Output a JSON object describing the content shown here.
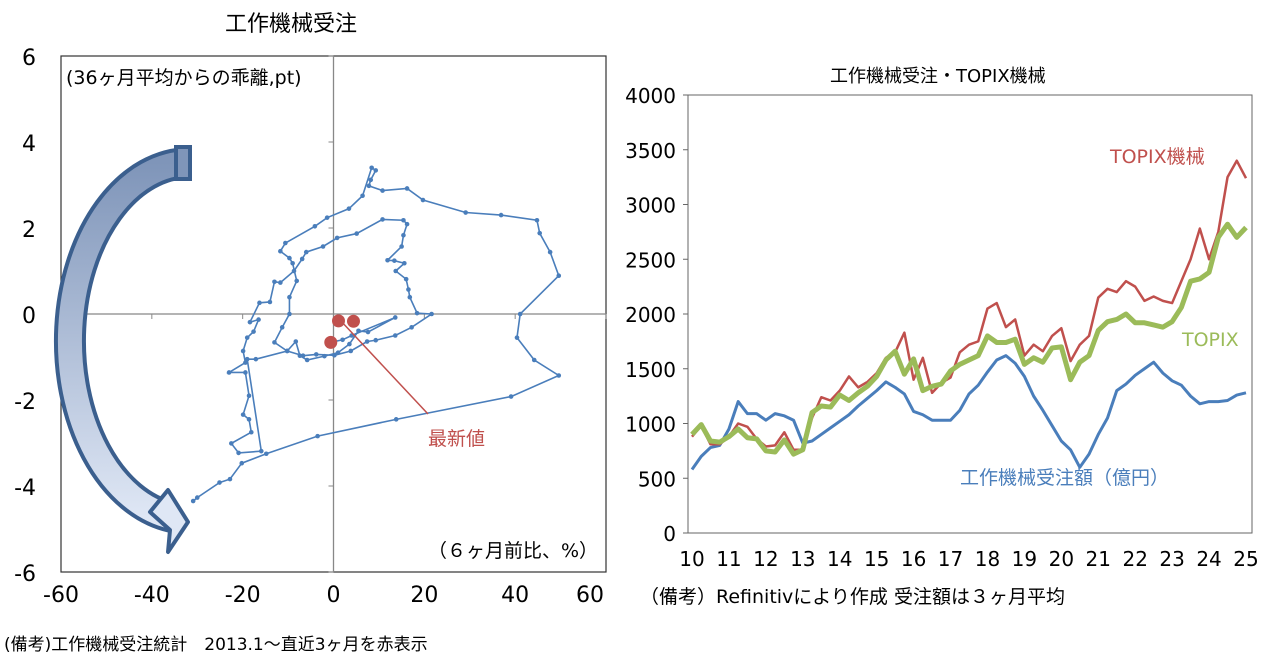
{
  "chart_data": [
    {
      "type": "scatter",
      "title": "工作機械受注",
      "xlabel": "（６ヶ月前比、%）",
      "ylabel": "(36ヶ月平均からの乖離,pt)",
      "xlim": [
        -60,
        60
      ],
      "ylim": [
        -6,
        6
      ],
      "xticks": [
        "-60",
        "-40",
        "-20",
        "0",
        "20",
        "40",
        "60"
      ],
      "yticks": [
        "6",
        "4",
        "2",
        "0",
        "-2",
        "-4",
        "-6"
      ],
      "grid": false,
      "annotation": "最新値",
      "series": [
        {
          "color": "#4a7ebb",
          "connected": true,
          "points": [
            [
              -30.9,
              -4.35
            ],
            [
              -30,
              -4.27
            ],
            [
              -25.1,
              -3.92
            ],
            [
              -22.8,
              -3.84
            ],
            [
              -20.2,
              -3.47
            ],
            [
              -14.8,
              -3.25
            ],
            [
              -3.5,
              -2.84
            ],
            [
              13.8,
              -2.45
            ],
            [
              39.1,
              -1.92
            ],
            [
              49.6,
              -1.43
            ],
            [
              44.2,
              -1.07
            ],
            [
              40.4,
              -0.55
            ],
            [
              41.1,
              0
            ],
            [
              49.6,
              0.89
            ],
            [
              47.7,
              1.44
            ],
            [
              45.4,
              1.88
            ],
            [
              44.8,
              2.18
            ],
            [
              36.9,
              2.3
            ],
            [
              29.1,
              2.36
            ],
            [
              19.7,
              2.65
            ],
            [
              16.2,
              2.92
            ],
            [
              10.8,
              2.87
            ],
            [
              7.8,
              2.98
            ],
            [
              8.2,
              3.12
            ],
            [
              9.3,
              3.34
            ],
            [
              8.4,
              3.4
            ],
            [
              6.4,
              2.75
            ],
            [
              3.4,
              2.45
            ],
            [
              -1.4,
              2.24
            ],
            [
              -4.1,
              2.04
            ],
            [
              -10.6,
              1.65
            ],
            [
              -11.7,
              1.46
            ],
            [
              -9.7,
              1.3
            ],
            [
              -9,
              1.18
            ],
            [
              -8.1,
              0.77
            ],
            [
              -9.7,
              0.39
            ],
            [
              -9.7,
              0
            ],
            [
              -11.3,
              -0.31
            ],
            [
              -13,
              -0.66
            ],
            [
              -10.2,
              -0.86
            ],
            [
              -6.7,
              -0.97
            ],
            [
              -3.8,
              -0.94
            ],
            [
              0.2,
              -0.96
            ],
            [
              3.8,
              -0.86
            ],
            [
              7.4,
              -0.64
            ],
            [
              9.3,
              -0.61
            ],
            [
              13.6,
              -0.5
            ],
            [
              17.2,
              -0.31
            ],
            [
              21.6,
              0
            ],
            [
              18.4,
              0.02
            ],
            [
              16.8,
              0.39
            ],
            [
              16.5,
              0.57
            ],
            [
              16,
              0.81
            ],
            [
              13.7,
              1
            ],
            [
              15.6,
              1.18
            ],
            [
              13.4,
              1.24
            ],
            [
              11.9,
              1.25
            ],
            [
              15,
              1.57
            ],
            [
              15.4,
              1.83
            ],
            [
              16.2,
              2.09
            ],
            [
              15.4,
              2.18
            ],
            [
              10.8,
              2.2
            ],
            [
              5.1,
              1.87
            ],
            [
              0.8,
              1.77
            ],
            [
              -2.3,
              1.57
            ],
            [
              -6,
              1.44
            ],
            [
              -6.9,
              1.28
            ],
            [
              -8.7,
              1
            ],
            [
              -11.7,
              0.73
            ],
            [
              -13,
              0.75
            ],
            [
              -14,
              0.28
            ],
            [
              -16.3,
              0.26
            ],
            [
              -18.4,
              -0.19
            ],
            [
              -16.5,
              -0.13
            ],
            [
              -17.6,
              -0.41
            ],
            [
              -19,
              -0.55
            ],
            [
              -19.9,
              -0.86
            ],
            [
              -19.4,
              -1.13
            ],
            [
              -23,
              -1.36
            ],
            [
              -19.4,
              -1.36
            ],
            [
              -18.6,
              -1.9
            ],
            [
              -19.9,
              -2.34
            ],
            [
              -18.6,
              -2.45
            ],
            [
              -18.1,
              -2.75
            ],
            [
              -22.5,
              -3.01
            ],
            [
              -20.9,
              -3.23
            ],
            [
              -15.9,
              -3.19
            ],
            [
              -19,
              -1.05
            ],
            [
              -17.1,
              -1.05
            ],
            [
              -10.2,
              -0.86
            ],
            [
              -8.3,
              -0.64
            ],
            [
              -7.4,
              -0.97
            ],
            [
              -5.8,
              -1.07
            ],
            [
              -2,
              -0.98
            ],
            [
              1,
              -0.9
            ],
            [
              3.5,
              -0.7
            ],
            [
              5.5,
              -0.39
            ],
            [
              7.6,
              -0.42
            ],
            [
              13.6,
              -0.08
            ],
            [
              4,
              -0.5
            ],
            [
              2,
              -0.6
            ],
            [
              -0.6,
              -0.66
            ]
          ]
        },
        {
          "color": "#c0504d",
          "connected": false,
          "points": [
            [
              -0.6,
              -0.66
            ],
            [
              1.1,
              -0.16
            ],
            [
              4.4,
              -0.17
            ]
          ]
        }
      ]
    },
    {
      "type": "line",
      "title": "工作機械受注・TOPIX機械",
      "xlim": [
        2010,
        2025
      ],
      "ylim": [
        0,
        4000
      ],
      "xticks": [
        "10",
        "11",
        "12",
        "13",
        "14",
        "15",
        "16",
        "17",
        "18",
        "19",
        "20",
        "21",
        "22",
        "23",
        "24",
        "25"
      ],
      "yticks": [
        "4000",
        "3500",
        "3000",
        "2500",
        "2000",
        "1500",
        "1000",
        "500",
        "0"
      ],
      "grid": false,
      "x": [
        2010,
        2010.25,
        2010.5,
        2010.75,
        2011,
        2011.25,
        2011.5,
        2011.75,
        2012,
        2012.25,
        2012.5,
        2012.75,
        2013,
        2013.25,
        2013.5,
        2013.75,
        2014,
        2014.25,
        2014.5,
        2014.75,
        2015,
        2015.25,
        2015.5,
        2015.75,
        2016,
        2016.25,
        2016.5,
        2016.75,
        2017,
        2017.25,
        2017.5,
        2017.75,
        2018,
        2018.25,
        2018.5,
        2018.75,
        2019,
        2019.25,
        2019.5,
        2019.75,
        2020,
        2020.25,
        2020.5,
        2020.75,
        2021,
        2021.25,
        2021.5,
        2021.75,
        2022,
        2022.25,
        2022.5,
        2022.75,
        2023,
        2023.25,
        2023.5,
        2023.75,
        2024,
        2024.25,
        2024.5,
        2024.75,
        2025
      ],
      "series": [
        {
          "name": "TOPIX機械",
          "color": "#c0504d",
          "values": [
            880,
            980,
            810,
            810,
            880,
            1000,
            970,
            860,
            790,
            800,
            920,
            760,
            760,
            1050,
            1240,
            1210,
            1300,
            1430,
            1330,
            1380,
            1460,
            1600,
            1650,
            1830,
            1400,
            1600,
            1280,
            1370,
            1420,
            1650,
            1720,
            1750,
            2050,
            2100,
            1880,
            1950,
            1620,
            1720,
            1660,
            1800,
            1870,
            1570,
            1720,
            1800,
            2150,
            2230,
            2200,
            2300,
            2250,
            2120,
            2160,
            2120,
            2100,
            2300,
            2500,
            2780,
            2500,
            2750,
            3250,
            3400,
            3240
          ]
        },
        {
          "name": "TOPIX",
          "color": "#9bbb59",
          "values": [
            900,
            990,
            840,
            830,
            880,
            950,
            870,
            860,
            750,
            740,
            850,
            720,
            760,
            1100,
            1160,
            1150,
            1260,
            1210,
            1280,
            1340,
            1430,
            1580,
            1660,
            1450,
            1590,
            1300,
            1340,
            1360,
            1480,
            1540,
            1580,
            1620,
            1800,
            1740,
            1740,
            1770,
            1540,
            1600,
            1560,
            1690,
            1700,
            1400,
            1560,
            1620,
            1850,
            1930,
            1950,
            2000,
            1920,
            1920,
            1900,
            1880,
            1930,
            2060,
            2300,
            2320,
            2380,
            2700,
            2820,
            2700,
            2790
          ]
        },
        {
          "name": "工作機械受注額（億円）",
          "color": "#4a7ebb",
          "values": [
            580,
            700,
            780,
            800,
            950,
            1200,
            1090,
            1090,
            1030,
            1090,
            1070,
            1030,
            820,
            840,
            900,
            960,
            1020,
            1080,
            1160,
            1230,
            1300,
            1380,
            1330,
            1270,
            1110,
            1080,
            1030,
            1030,
            1030,
            1120,
            1270,
            1350,
            1470,
            1580,
            1620,
            1550,
            1430,
            1250,
            1120,
            980,
            840,
            760,
            600,
            720,
            900,
            1050,
            1300,
            1360,
            1440,
            1500,
            1560,
            1460,
            1390,
            1350,
            1250,
            1180,
            1200,
            1200,
            1210,
            1260,
            1280
          ]
        }
      ]
    }
  ],
  "notes": {
    "left": "(備考)工作機械受注統計　2013.1～直近3ヶ月を赤表示",
    "right": "（備考）Refinitivにより作成 受注額は３ヶ月平均"
  }
}
